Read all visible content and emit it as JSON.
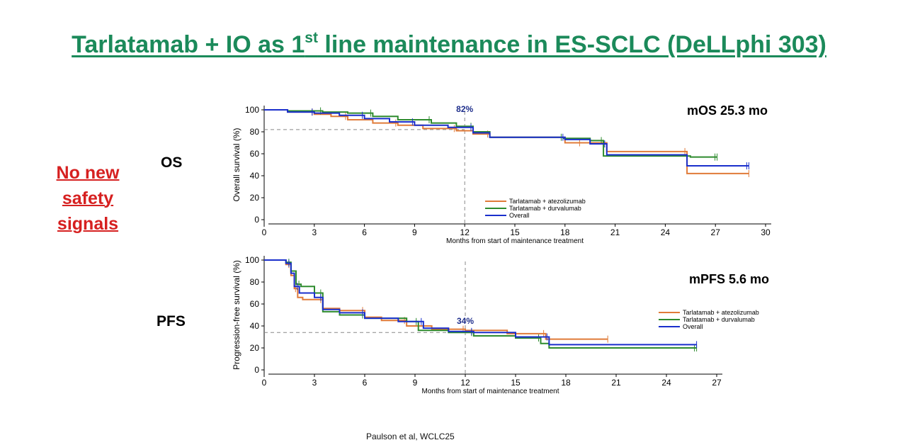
{
  "title": {
    "main": "Tarlatamab + IO as 1",
    "sup": "st",
    "rest": " line maintenance in ES-SCLC (DeLLphi 303)"
  },
  "safety": {
    "line1": "No new",
    "line2": "safety",
    "line3": "signals"
  },
  "labels": {
    "os": "OS",
    "pfs": "PFS"
  },
  "citation": "Paulson et al, WCLC25",
  "colors": {
    "title": "#1b8a5a",
    "safety": "#d62020",
    "atezolizumab": "#e07b39",
    "durvalumab": "#2e8b2e",
    "overall": "#1a2fcc",
    "annotation": "#1f2f8c"
  },
  "chart_data": [
    {
      "type": "line",
      "step": true,
      "ylabel": "Overall survival (%)",
      "xlabel": "Months from start of maintenance treatment",
      "xticks": [
        0,
        3,
        6,
        9,
        12,
        15,
        18,
        21,
        24,
        27,
        30
      ],
      "yticks": [
        0,
        20,
        40,
        60,
        80,
        100
      ],
      "xlim": [
        0,
        30
      ],
      "ylim": [
        0,
        100
      ],
      "headline": "mOS 25.3 mo",
      "landmark": {
        "x": 12,
        "y": 82,
        "label": "82%"
      },
      "legend_position": "bottom-right",
      "series": [
        {
          "name": "Tarlatamab + atezolizumab",
          "color": "#e07b39",
          "x": [
            0,
            1.4,
            3,
            4,
            5,
            6.5,
            8,
            9.5,
            11.5,
            12.5,
            13.5,
            18,
            19,
            20.5,
            25.3,
            29
          ],
          "y": [
            100,
            98,
            96,
            94,
            91,
            88,
            86,
            83,
            81,
            78,
            75,
            70,
            70,
            62,
            42,
            42
          ]
        },
        {
          "name": "Tarlatamab + durvalumab",
          "color": "#2e8b2e",
          "x": [
            0,
            1.4,
            3.5,
            5,
            6.5,
            8,
            10,
            11.5,
            12.5,
            13.5,
            17.9,
            19.5,
            20.3,
            25.5,
            27.1
          ],
          "y": [
            100,
            99,
            98,
            97,
            94,
            91,
            88,
            85,
            80,
            75,
            74,
            72,
            58,
            57,
            57
          ]
        },
        {
          "name": "Overall",
          "color": "#1a2fcc",
          "x": [
            0,
            1.4,
            3,
            4.5,
            6,
            7.5,
            9,
            11,
            12.5,
            13.5,
            18,
            19.5,
            20.5,
            25.3,
            29
          ],
          "y": [
            100,
            98,
            97,
            95,
            92,
            89,
            86,
            84,
            79,
            75,
            73,
            69,
            59,
            49,
            49
          ]
        }
      ]
    },
    {
      "type": "line",
      "step": true,
      "ylabel": "Progression-free survival (%)",
      "xlabel": "Months from start of maintenance treatment",
      "xticks": [
        0,
        3,
        6,
        9,
        12,
        15,
        18,
        21,
        24,
        27
      ],
      "yticks": [
        0,
        20,
        40,
        60,
        80,
        100
      ],
      "xlim": [
        0,
        27
      ],
      "ylim": [
        0,
        100
      ],
      "headline": "mPFS 5.6 mo",
      "landmark": {
        "x": 12,
        "y": 34,
        "label": "34%"
      },
      "legend_position": "right",
      "series": [
        {
          "name": "Tarlatamab + atezolizumab",
          "color": "#e07b39",
          "x": [
            0,
            1.3,
            1.6,
            1.8,
            2.0,
            2.3,
            3.5,
            4.5,
            6,
            7,
            8.5,
            10,
            12,
            14.5,
            16.8,
            20.5
          ],
          "y": [
            100,
            96,
            86,
            74,
            66,
            64,
            56,
            54,
            48,
            45,
            40,
            37,
            36,
            33,
            28,
            28
          ]
        },
        {
          "name": "Tarlatamab + durvalumab",
          "color": "#2e8b2e",
          "x": [
            0,
            1.3,
            1.6,
            1.9,
            2.2,
            3,
            3.5,
            4.5,
            6,
            8.5,
            9.2,
            11,
            12.5,
            15,
            16.5,
            17,
            25.8
          ],
          "y": [
            100,
            98,
            90,
            78,
            76,
            70,
            53,
            50,
            47,
            44,
            36,
            34,
            31,
            29,
            24,
            20,
            20
          ]
        },
        {
          "name": "Overall",
          "color": "#1a2fcc",
          "x": [
            0,
            1.3,
            1.6,
            1.8,
            2.1,
            3,
            3.5,
            4.5,
            6,
            8,
            9.5,
            11,
            12.5,
            15,
            17,
            25.8
          ],
          "y": [
            100,
            97,
            88,
            76,
            70,
            66,
            55,
            52,
            47,
            44,
            38,
            35,
            34,
            30,
            23,
            23
          ]
        }
      ]
    }
  ]
}
